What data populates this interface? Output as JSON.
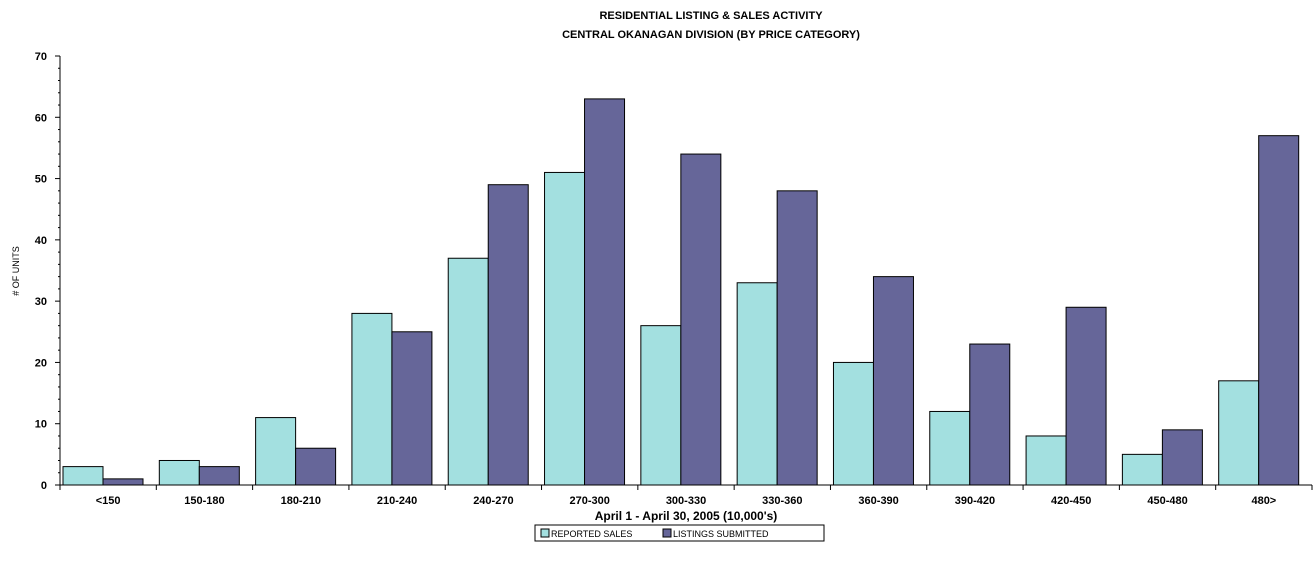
{
  "chart_data": {
    "type": "bar",
    "title": "RESIDENTIAL LISTING & SALES ACTIVITY",
    "subtitle": "CENTRAL OKANAGAN DIVISION (BY PRICE CATEGORY)",
    "xlabel": "April 1 - April 30, 2005 (10,000's)",
    "ylabel": "# OF UNITS",
    "ylim": [
      0,
      70
    ],
    "yticks": [
      0,
      10,
      20,
      30,
      40,
      50,
      60,
      70
    ],
    "grid": false,
    "legend_position": "bottom",
    "categories": [
      "<150",
      "150-180",
      "180-210",
      "210-240",
      "240-270",
      "270-300",
      "300-330",
      "330-360",
      "360-390",
      "390-420",
      "420-450",
      "450-480",
      "480>"
    ],
    "series": [
      {
        "name": "REPORTED SALES",
        "color": "#a3e0e0",
        "values": [
          3,
          4,
          11,
          28,
          37,
          51,
          26,
          33,
          20,
          12,
          8,
          5,
          17
        ]
      },
      {
        "name": "LISTINGS SUBMITTED",
        "color": "#666699",
        "values": [
          1,
          3,
          6,
          25,
          49,
          63,
          54,
          48,
          34,
          23,
          29,
          9,
          57
        ]
      }
    ]
  }
}
